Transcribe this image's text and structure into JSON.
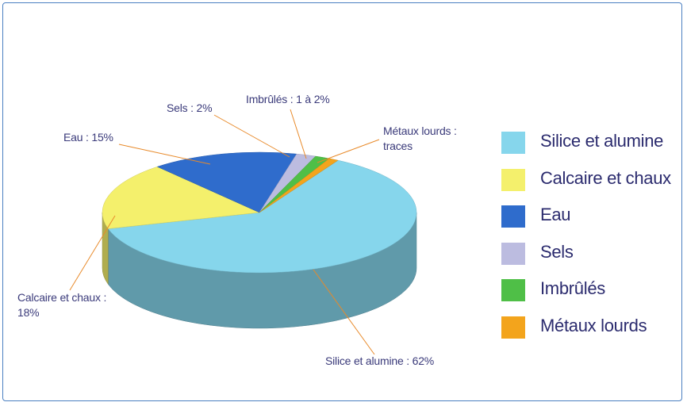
{
  "chart_data": {
    "type": "pie3d",
    "categories": [
      "Silice et alumine",
      "Calcaire et chaux",
      "Eau",
      "Sels",
      "Imbrûlés",
      "Métaux lourds"
    ],
    "values": [
      62,
      18,
      15,
      2,
      1.5,
      1
    ],
    "value_labels": [
      "Silice et alumine : 62%",
      "Calcaire et chaux : 18%",
      "Eau : 15%",
      "Sels : 2%",
      "Imbrûlés : 1 à 2%",
      "Métaux lourds : traces"
    ],
    "colors": [
      "#86d6ec",
      "#f4f06c",
      "#2f6ccc",
      "#bcbce0",
      "#4fbf47",
      "#f3a41c"
    ],
    "legend": "right"
  }
}
